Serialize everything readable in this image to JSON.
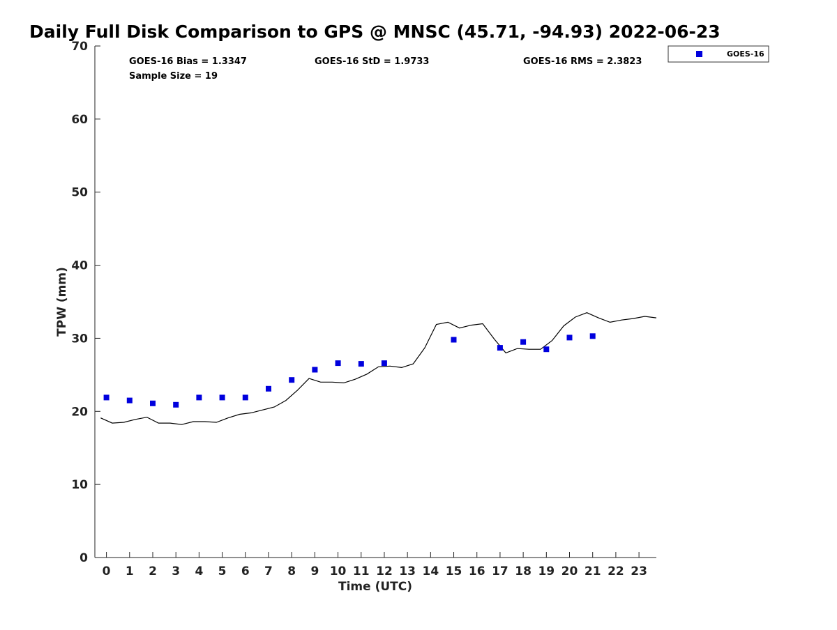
{
  "chart_data": {
    "type": "scatter",
    "title": "Daily Full Disk Comparison to GPS @ MNSC (45.71, -94.93) 2022-06-23",
    "xlabel": "Time (UTC)",
    "ylabel": "TPW (mm)",
    "xlim": [
      -0.5,
      23.75
    ],
    "ylim": [
      0,
      70
    ],
    "xticks": [
      0,
      1,
      2,
      3,
      4,
      5,
      6,
      7,
      8,
      9,
      10,
      11,
      12,
      13,
      14,
      15,
      16,
      17,
      18,
      19,
      20,
      21,
      22,
      23
    ],
    "yticks": [
      0,
      10,
      20,
      30,
      40,
      50,
      60,
      70
    ],
    "grid": false,
    "legend_position": "top-right-outside",
    "stats": {
      "bias": "GOES-16 Bias = 1.3347",
      "std": "GOES-16 StD = 1.9733",
      "rms": "GOES-16 RMS = 2.3823",
      "sample": "Sample Size = 19"
    },
    "series": [
      {
        "name": "GOES-16",
        "kind": "scatter",
        "color": "#0000dd",
        "x": [
          0,
          1,
          2,
          3,
          4,
          5,
          6,
          7,
          8,
          9,
          10,
          11,
          12,
          15,
          17,
          18,
          19,
          20,
          21
        ],
        "y": [
          21.9,
          21.5,
          21.1,
          20.9,
          21.9,
          21.9,
          21.9,
          23.1,
          24.3,
          25.7,
          26.6,
          26.5,
          26.6,
          29.8,
          28.7,
          29.5,
          28.5,
          30.1,
          30.3
        ]
      },
      {
        "name": "GPS",
        "kind": "line",
        "color": "#000000",
        "x": [
          -0.25,
          0.25,
          0.75,
          1.25,
          1.75,
          2.25,
          2.75,
          3.25,
          3.75,
          4.25,
          4.75,
          5.25,
          5.75,
          6.25,
          6.75,
          7.25,
          7.75,
          8.25,
          8.75,
          9.25,
          9.75,
          10.25,
          10.75,
          11.25,
          11.75,
          12.25,
          12.75,
          13.25,
          13.75,
          14.25,
          14.75,
          15.25,
          15.75,
          16.25,
          16.75,
          17.25,
          17.75,
          18.25,
          18.75,
          19.25,
          19.75,
          20.25,
          20.75,
          21.25,
          21.75,
          22.25,
          22.75,
          23.25,
          23.75
        ],
        "y": [
          19.1,
          18.4,
          18.5,
          18.9,
          19.2,
          18.4,
          18.4,
          18.2,
          18.6,
          18.6,
          18.5,
          19.1,
          19.6,
          19.8,
          20.2,
          20.6,
          21.5,
          22.9,
          24.5,
          24.0,
          24.0,
          23.9,
          24.4,
          25.1,
          26.1,
          26.2,
          26.0,
          26.5,
          28.7,
          31.9,
          32.2,
          31.4,
          31.8,
          32.0,
          29.9,
          28.0,
          28.6,
          28.5,
          28.5,
          29.7,
          31.7,
          32.9,
          33.5,
          32.8,
          32.2,
          32.5,
          32.7,
          33.0,
          32.8
        ]
      }
    ]
  },
  "colors": {
    "scatter": "#0000dd",
    "line": "#000000",
    "axis": "#222222"
  }
}
